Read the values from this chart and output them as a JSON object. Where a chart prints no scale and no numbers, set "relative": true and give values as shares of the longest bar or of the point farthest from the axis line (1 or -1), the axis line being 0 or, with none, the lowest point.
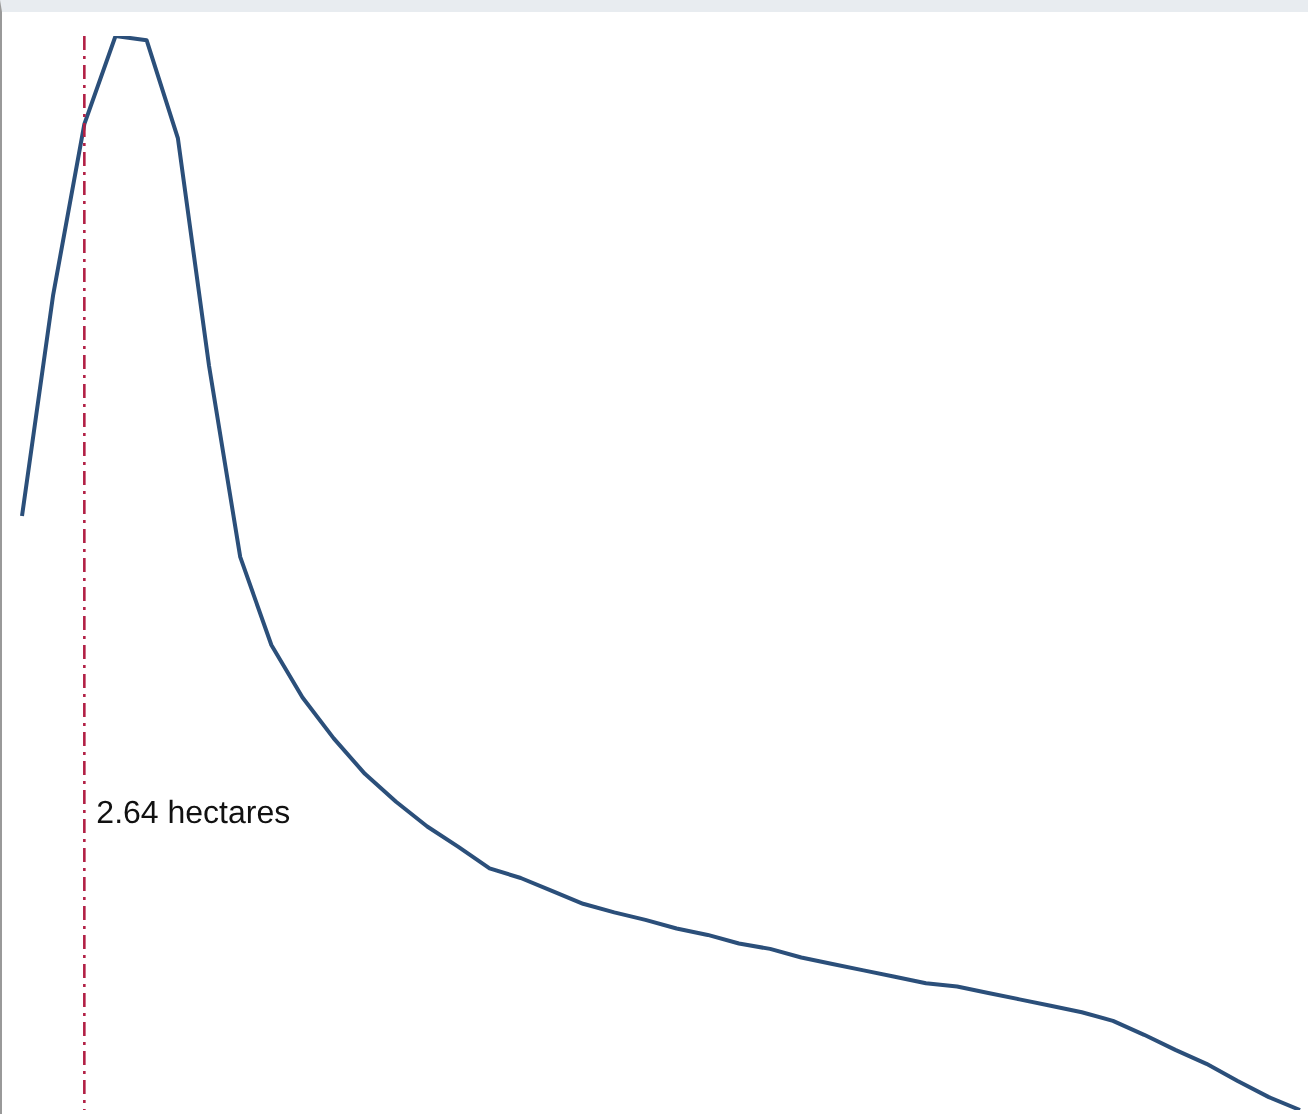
{
  "chart_data": {
    "type": "line",
    "relative": true,
    "grid": false,
    "legend": false,
    "marker": "none",
    "line_style": "solid",
    "categories": [
      null,
      null,
      null,
      null,
      null,
      null,
      null,
      null,
      null,
      null,
      null,
      null,
      null,
      null,
      null,
      null,
      null,
      null,
      null,
      null,
      null,
      null,
      null,
      null,
      null,
      null,
      null,
      null,
      null,
      null,
      null,
      null,
      null,
      null,
      null,
      null,
      null,
      null,
      null,
      null,
      null,
      null
    ],
    "series": [
      {
        "color": "#2b4f7a",
        "values": [
          0.553,
          0.759,
          0.918,
          1,
          0.996,
          0.905,
          0.693,
          0.515,
          0.433,
          0.384,
          0.346,
          0.313,
          0.287,
          0.264,
          0.245,
          0.225,
          0.216,
          0.204,
          0.192,
          0.184,
          0.177,
          0.169,
          0.163,
          0.155,
          0.15,
          0.142,
          0.136,
          0.13,
          0.124,
          0.118,
          0.115,
          0.109,
          0.103,
          0.097,
          0.091,
          0.083,
          0.07,
          0.056,
          0.043,
          0.027,
          0.012,
          0
        ]
      }
    ],
    "annotations": [
      "2.64 hectares"
    ]
  }
}
